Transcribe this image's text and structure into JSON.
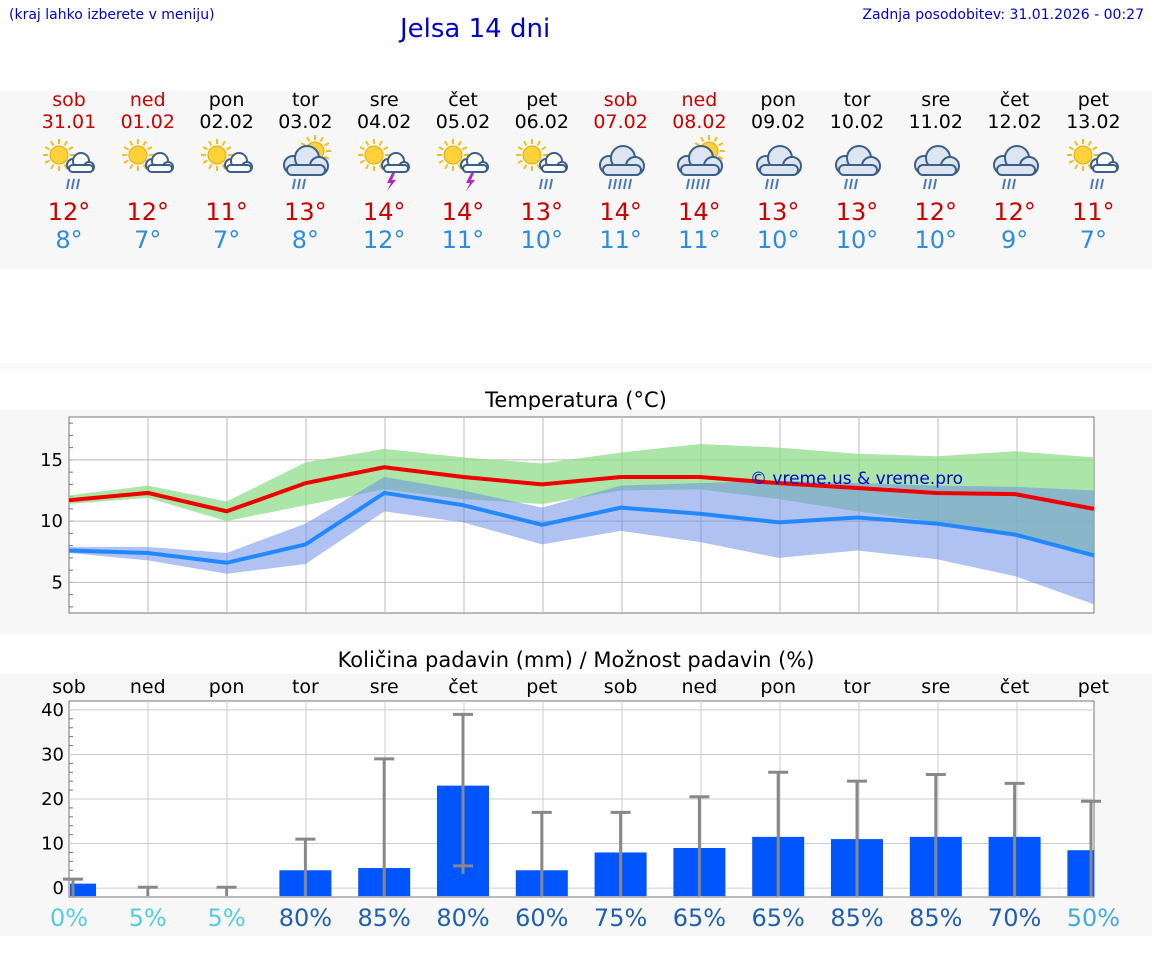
{
  "header": {
    "left_note": "(kraj lahko izberete v meniju)",
    "title": "Jelsa 14 dni",
    "updated": "Zadnja posodobitev: 31.01.2026 - 00:27"
  },
  "colors": {
    "weekend": "#cc0000",
    "max_temp": "#cc0000",
    "min_temp": "#2b8ce0",
    "bar": "#0055ff",
    "title": "#0000cc"
  },
  "days": [
    {
      "name": "sob",
      "date": "31.01",
      "weekend": true,
      "icon": "sun-rain-icon",
      "max": "12°",
      "min": "8°"
    },
    {
      "name": "ned",
      "date": "01.02",
      "weekend": true,
      "icon": "sun-cloud-icon",
      "max": "12°",
      "min": "7°"
    },
    {
      "name": "pon",
      "date": "02.02",
      "weekend": false,
      "icon": "sun-cloud-icon",
      "max": "11°",
      "min": "7°"
    },
    {
      "name": "tor",
      "date": "03.02",
      "weekend": false,
      "icon": "cloud-sun-rain-icon",
      "max": "13°",
      "min": "8°"
    },
    {
      "name": "sre",
      "date": "04.02",
      "weekend": false,
      "icon": "sun-thunder-icon",
      "max": "14°",
      "min": "12°"
    },
    {
      "name": "čet",
      "date": "05.02",
      "weekend": false,
      "icon": "sun-thunder-icon",
      "max": "14°",
      "min": "11°"
    },
    {
      "name": "pet",
      "date": "06.02",
      "weekend": false,
      "icon": "sun-rain-icon",
      "max": "13°",
      "min": "10°"
    },
    {
      "name": "sob",
      "date": "07.02",
      "weekend": true,
      "icon": "cloud-heavy-rain-icon",
      "max": "14°",
      "min": "11°"
    },
    {
      "name": "ned",
      "date": "08.02",
      "weekend": true,
      "icon": "cloud-sun-heavy-rain-icon",
      "max": "14°",
      "min": "11°"
    },
    {
      "name": "pon",
      "date": "09.02",
      "weekend": false,
      "icon": "cloud-rain-icon",
      "max": "13°",
      "min": "10°"
    },
    {
      "name": "tor",
      "date": "10.02",
      "weekend": false,
      "icon": "cloud-rain-icon",
      "max": "13°",
      "min": "10°"
    },
    {
      "name": "sre",
      "date": "11.02",
      "weekend": false,
      "icon": "cloud-rain-icon",
      "max": "12°",
      "min": "10°"
    },
    {
      "name": "čet",
      "date": "12.02",
      "weekend": false,
      "icon": "cloud-rain-icon",
      "max": "12°",
      "min": "9°"
    },
    {
      "name": "pet",
      "date": "13.02",
      "weekend": false,
      "icon": "sun-rain-icon",
      "max": "11°",
      "min": "7°"
    }
  ],
  "chart_data": [
    {
      "type": "line",
      "title": "Temperatura (°C)",
      "watermark": "© vreme.us & vreme.pro",
      "ylim": [
        2.5,
        18.5
      ],
      "yticks": [
        5,
        10,
        15
      ],
      "x": [
        0,
        1,
        2,
        3,
        4,
        5,
        6,
        7,
        8,
        9,
        10,
        11,
        12,
        13
      ],
      "series": [
        {
          "name": "max",
          "color": "#ee0000",
          "values": [
            11.7,
            12.3,
            10.8,
            13.1,
            14.4,
            13.6,
            13.0,
            13.6,
            13.6,
            13.1,
            12.7,
            12.3,
            12.2,
            11.0
          ],
          "band_low": [
            11.4,
            11.9,
            10.0,
            11.3,
            12.6,
            11.8,
            11.4,
            12.5,
            12.6,
            11.8,
            10.8,
            9.9,
            8.9,
            7.2
          ],
          "band_high": [
            12.1,
            12.9,
            11.6,
            14.8,
            15.9,
            15.2,
            14.7,
            15.6,
            16.3,
            16.0,
            15.5,
            15.3,
            15.7,
            15.2
          ]
        },
        {
          "name": "min",
          "color": "#2288ff",
          "values": [
            7.6,
            7.4,
            6.6,
            8.1,
            12.3,
            11.3,
            9.7,
            11.1,
            10.6,
            9.9,
            10.3,
            9.8,
            8.9,
            7.2
          ],
          "band_low": [
            7.4,
            6.8,
            5.7,
            6.5,
            10.8,
            9.9,
            8.1,
            9.2,
            8.3,
            7.0,
            7.6,
            6.9,
            5.5,
            3.2
          ],
          "band_high": [
            7.9,
            7.9,
            7.4,
            9.8,
            13.6,
            12.5,
            11.1,
            12.9,
            13.1,
            13.3,
            13.1,
            12.9,
            12.8,
            12.5
          ]
        }
      ]
    },
    {
      "type": "bar",
      "title": "Količina padavin (mm) / Možnost padavin (%)",
      "categories": [
        "sob",
        "ned",
        "pon",
        "tor",
        "sre",
        "čet",
        "pet",
        "sob",
        "ned",
        "pon",
        "tor",
        "sre",
        "čet",
        "pet"
      ],
      "ylim": [
        -2,
        42
      ],
      "yticks": [
        0,
        10,
        20,
        30,
        40
      ],
      "values": [
        1,
        0,
        0,
        4,
        4.5,
        23,
        4,
        8,
        9,
        11.5,
        11,
        11.5,
        11.5,
        8.5
      ],
      "err_low": [
        0,
        0,
        0,
        0,
        0,
        5,
        0,
        0,
        0,
        0,
        0,
        0,
        0,
        0
      ],
      "err_high": [
        2,
        0.2,
        0.2,
        11,
        29,
        39,
        17,
        17,
        20.5,
        26,
        24,
        25.5,
        23.5,
        19.5
      ],
      "probability": [
        "0%",
        "5%",
        "5%",
        "80%",
        "85%",
        "80%",
        "60%",
        "75%",
        "65%",
        "65%",
        "85%",
        "85%",
        "70%",
        "50%"
      ],
      "probability_colors": [
        "#55ccdd",
        "#55ccdd",
        "#55ccdd",
        "#1f5fb0",
        "#1f5fb0",
        "#1f5fb0",
        "#1f5fb0",
        "#1f5fb0",
        "#1f5fb0",
        "#1f5fb0",
        "#1f5fb0",
        "#1f5fb0",
        "#1f5fb0",
        "#44aadd"
      ]
    }
  ]
}
